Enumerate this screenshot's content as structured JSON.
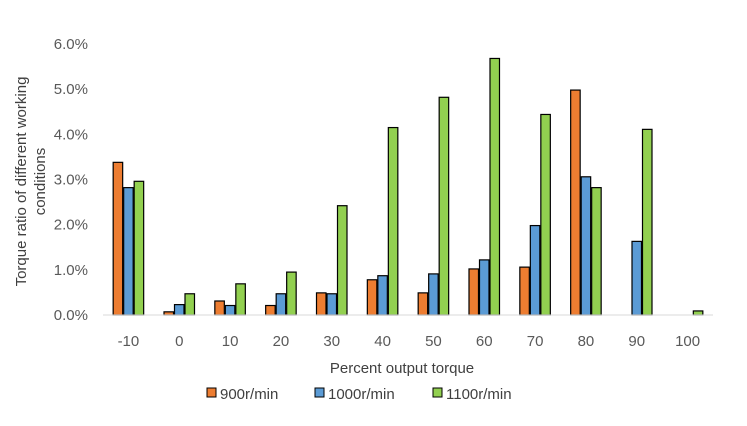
{
  "chart_data": {
    "type": "bar",
    "title": "",
    "xlabel": "Percent output torque",
    "ylabel_lines": [
      "Torque ratio of different working",
      "conditions"
    ],
    "categories": [
      "-10",
      "0",
      "10",
      "20",
      "30",
      "40",
      "50",
      "60",
      "70",
      "80",
      "90",
      "100"
    ],
    "ylim": [
      0,
      0.06
    ],
    "yticks": [
      0,
      0.01,
      0.02,
      0.03,
      0.04,
      0.05,
      0.06
    ],
    "ytick_labels": [
      "0.0%",
      "1.0%",
      "2.0%",
      "3.0%",
      "4.0%",
      "5.0%",
      "6.0%"
    ],
    "grid": false,
    "legend_position": "bottom",
    "series": [
      {
        "name": "900r/min",
        "color": "#ED7D31",
        "values": [
          0.0338,
          0.0007,
          0.0031,
          0.0021,
          0.0049,
          0.0078,
          0.0049,
          0.0102,
          0.0106,
          0.0498,
          0.0,
          0.0
        ]
      },
      {
        "name": "1000r/min",
        "color": "#5B9BD5",
        "values": [
          0.0282,
          0.0023,
          0.0021,
          0.0047,
          0.0047,
          0.0087,
          0.0091,
          0.0122,
          0.0198,
          0.0306,
          0.0163,
          0.0
        ]
      },
      {
        "name": "1100r/min",
        "color": "#92D050",
        "values": [
          0.0296,
          0.0047,
          0.0069,
          0.0095,
          0.0242,
          0.0415,
          0.0482,
          0.0568,
          0.0444,
          0.0282,
          0.0411,
          0.0009
        ]
      }
    ]
  }
}
